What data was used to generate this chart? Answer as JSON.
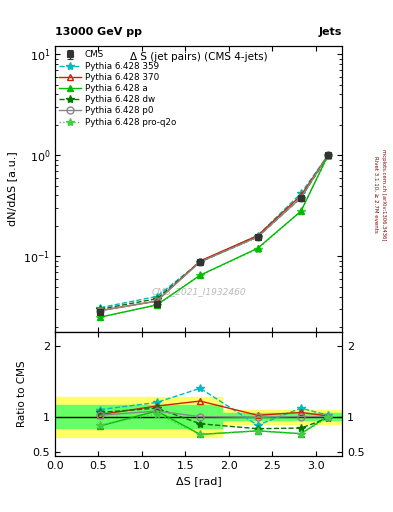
{
  "title_top": "Δ S (jet pairs) (CMS 4-jets)",
  "header_left": "13000 GeV pp",
  "header_right": "Jets",
  "ylabel_main": "dN/dΔS [a.u.]",
  "ylabel_ratio": "Ratio to CMS",
  "xlabel": "ΔS [rad]",
  "right_label1": "Rivet 3.1.10, ≥ 2.7M events",
  "right_label2": "mcplots.cern.ch [arXiv:1306.3436]",
  "watermark": "CMS_2021_I1932460",
  "x_points": [
    0.52,
    1.17,
    1.67,
    2.33,
    2.83,
    3.14
  ],
  "cms_y": [
    0.028,
    0.034,
    0.088,
    0.155,
    0.38,
    1.0
  ],
  "cms_yerr": [
    0.002,
    0.002,
    0.005,
    0.008,
    0.015,
    0.02
  ],
  "p359_y": [
    0.031,
    0.04,
    0.088,
    0.16,
    0.42,
    1.0
  ],
  "p370_y": [
    0.029,
    0.036,
    0.09,
    0.16,
    0.4,
    1.0
  ],
  "pa_y": [
    0.025,
    0.033,
    0.065,
    0.12,
    0.28,
    1.0
  ],
  "pdw_y": [
    0.03,
    0.038,
    0.088,
    0.155,
    0.38,
    0.98
  ],
  "pp0_y": [
    0.029,
    0.036,
    0.088,
    0.155,
    0.38,
    1.0
  ],
  "pq2o_y": [
    0.025,
    0.033,
    0.065,
    0.118,
    0.28,
    0.98
  ],
  "ratio_359": [
    1.1,
    1.2,
    1.4,
    0.88,
    1.12,
    1.02
  ],
  "ratio_370": [
    1.03,
    1.15,
    1.22,
    1.02,
    1.06,
    1.01
  ],
  "ratio_a": [
    0.87,
    1.08,
    0.75,
    0.8,
    0.76,
    1.01
  ],
  "ratio_dw": [
    1.06,
    1.12,
    0.9,
    0.83,
    0.84,
    0.98
  ],
  "ratio_p0": [
    1.02,
    1.08,
    1.0,
    0.99,
    1.0,
    1.0
  ],
  "ratio_q2o": [
    0.88,
    1.04,
    0.75,
    0.8,
    0.76,
    0.99
  ],
  "color_cms": "#333333",
  "color_359": "#00bbbb",
  "color_370": "#cc2200",
  "color_a": "#00bb00",
  "color_dw": "#007700",
  "color_p0": "#888888",
  "color_q2o": "#44cc44",
  "ylim_main": [
    0.018,
    12
  ],
  "ylim_ratio": [
    0.45,
    2.2
  ],
  "xlim": [
    0.0,
    3.3
  ]
}
